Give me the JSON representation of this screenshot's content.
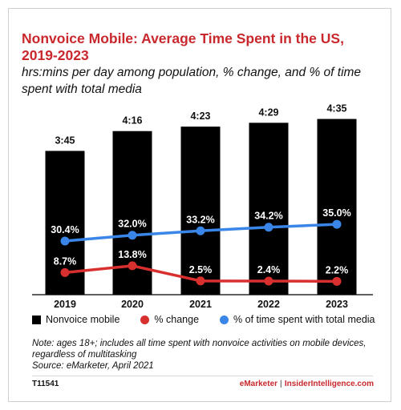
{
  "chart_data": {
    "type": "bar",
    "title": "Nonvoice Mobile: Average Time Spent in the US, 2019-2023",
    "subtitle": "hrs:mins per day among population, % change, and % of time spent with total media",
    "categories": [
      "2019",
      "2020",
      "2021",
      "2022",
      "2023"
    ],
    "series": [
      {
        "name": "Nonvoice mobile",
        "kind": "bar",
        "values": [
          225,
          256,
          263,
          269,
          275
        ],
        "labels": [
          "3:45",
          "4:16",
          "4:23",
          "4:29",
          "4:35"
        ],
        "color": "#000000"
      },
      {
        "name": "% change",
        "kind": "line",
        "values": [
          8.7,
          13.8,
          2.5,
          2.4,
          2.2
        ],
        "labels": [
          "8.7%",
          "13.8%",
          "2.5%",
          "2.4%",
          "2.2%"
        ],
        "color": "#d8302f"
      },
      {
        "name": "% of time spent with total media",
        "kind": "line",
        "values": [
          30.4,
          32.0,
          33.2,
          34.2,
          35.0
        ],
        "labels": [
          "30.4%",
          "32.0%",
          "33.2%",
          "34.2%",
          "35.0%"
        ],
        "color": "#3a86e8"
      }
    ],
    "grid": false,
    "legend_position": "bottom"
  },
  "note": "Note: ages 18+; includes all time spent with nonvoice activities on mobile devices, regardless of multitasking",
  "source": "Source: eMarketer, April 2021",
  "footer": {
    "id": "T11541",
    "brand_left": "eMarketer",
    "brand_sep": "|",
    "brand_right": "InsiderIntelligence.com"
  }
}
